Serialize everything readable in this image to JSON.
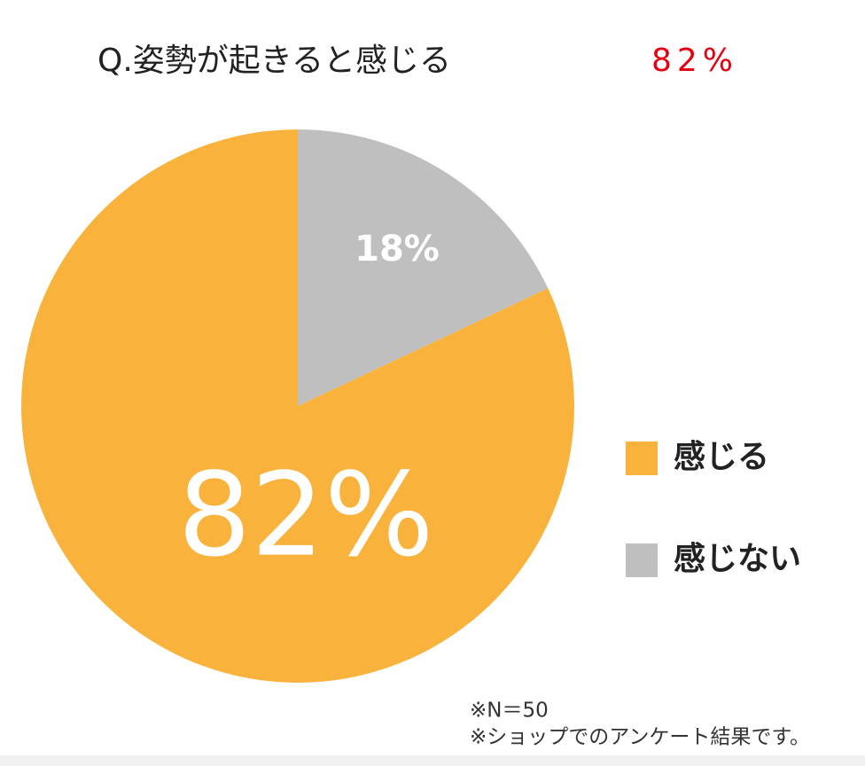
{
  "chart_data": {
    "type": "pie",
    "title": "Q.姿勢が起きると感じる",
    "annotations": [
      {
        "text": "82%",
        "color": "#e60012"
      }
    ],
    "categories": [
      "感じる",
      "感じない"
    ],
    "values": [
      82,
      18
    ],
    "value_labels": [
      "82%",
      "18%"
    ],
    "colors": [
      "#f9b33c",
      "#c0bfc0"
    ],
    "notes": [
      "※N＝50",
      "※ショップでのアンケート結果です。"
    ]
  }
}
